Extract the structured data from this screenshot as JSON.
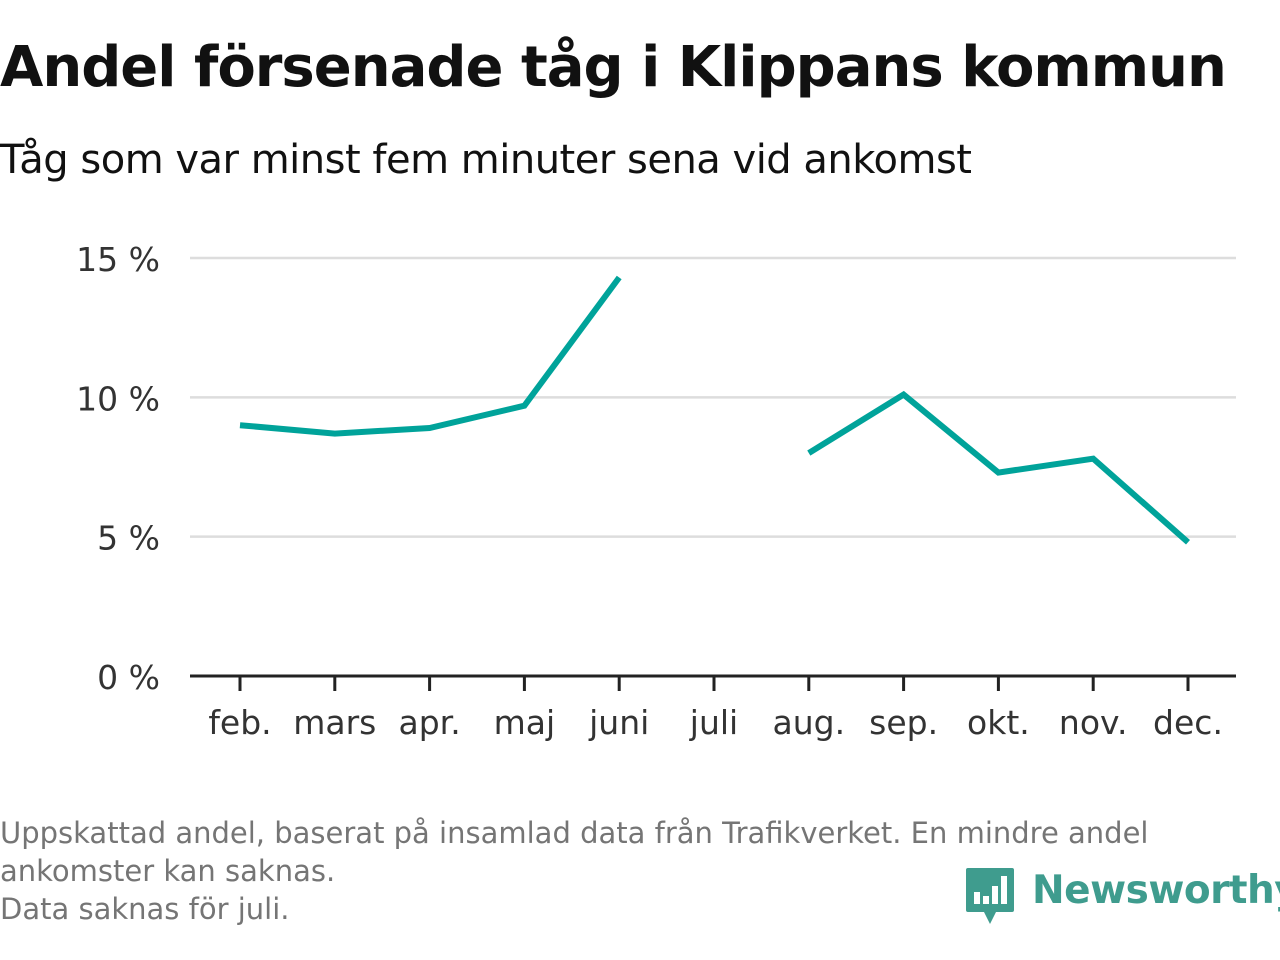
{
  "header": {
    "title": "Andel försenade tåg i Klippans kommun",
    "subtitle": "Tåg som var minst fem minuter sena vid ankomst"
  },
  "chart_data": {
    "type": "line",
    "categories": [
      "feb.",
      "mars",
      "apr.",
      "maj",
      "juni",
      "juli",
      "aug.",
      "sep.",
      "okt.",
      "nov.",
      "dec."
    ],
    "series": [
      {
        "values": [
          9.0,
          8.7,
          8.9,
          9.7,
          14.3,
          null,
          8.0,
          10.1,
          7.3,
          7.8,
          4.8
        ],
        "color": "#00a39a"
      }
    ],
    "yticks": [
      0,
      5,
      10,
      15
    ],
    "ytick_labels": [
      "0 %",
      "5 %",
      "10 %",
      "15 %"
    ],
    "ylim": [
      0,
      15
    ],
    "grid": true,
    "gridColor": "#dddddd",
    "axisColor": "#222222"
  },
  "footer": {
    "line1": "Uppskattad andel, baserat på insamlad data från Trafikverket. En mindre andel",
    "line2": "ankomster kan saknas.",
    "line3": "Data saknas för juli."
  },
  "brand": {
    "name": "Newsworthy",
    "icon": "newsworthy-logo-icon",
    "color": "#3f9c8e"
  }
}
